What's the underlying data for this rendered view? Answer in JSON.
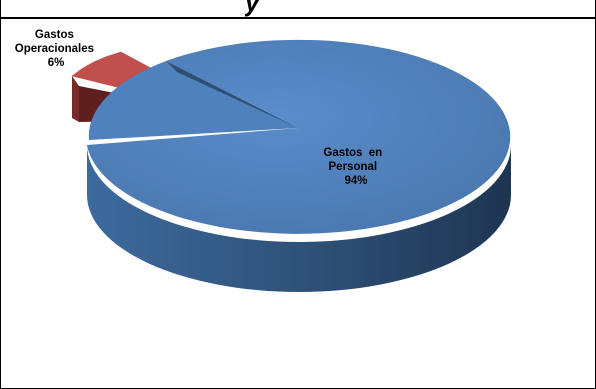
{
  "chart_data": {
    "type": "pie",
    "style": "3d-exploded",
    "title_fragment": "y",
    "slices": [
      {
        "name_lines": [
          "Gastos",
          "Operacionales"
        ],
        "percent_label": "6%",
        "value": 6,
        "color": "#c0504d",
        "side_color": "#7b2a2a",
        "exploded": true
      },
      {
        "name_lines": [
          "Gastos  en",
          "Personal"
        ],
        "percent_label": "94%",
        "value": 94,
        "color": "#4f81bd",
        "side_color": "#2e4f74",
        "exploded": false
      }
    ]
  }
}
